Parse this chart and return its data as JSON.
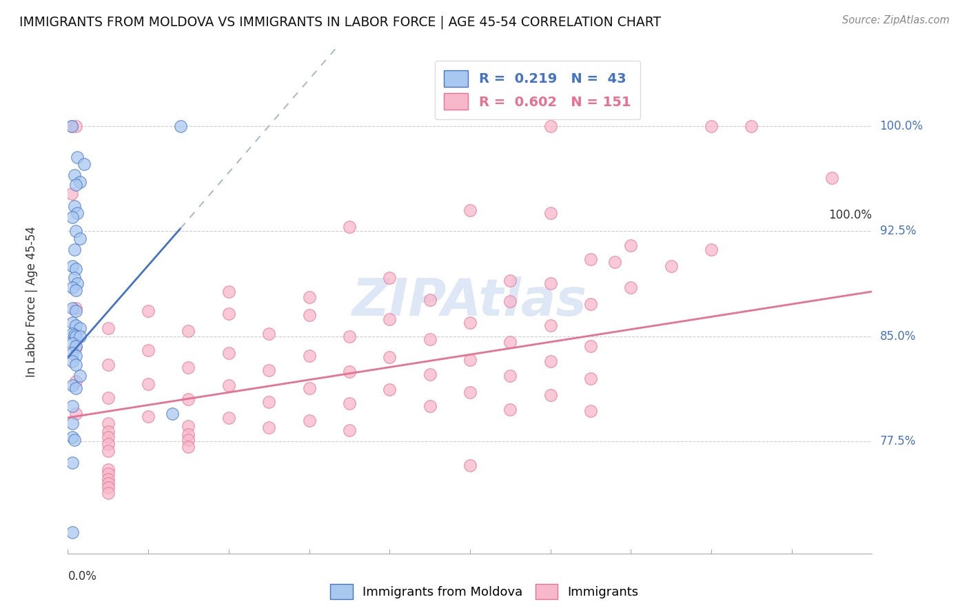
{
  "title": "IMMIGRANTS FROM MOLDOVA VS IMMIGRANTS IN LABOR FORCE | AGE 45-54 CORRELATION CHART",
  "source": "Source: ZipAtlas.com",
  "ylabel": "In Labor Force | Age 45-54",
  "yticks": [
    0.775,
    0.85,
    0.925,
    1.0
  ],
  "ytick_labels": [
    "77.5%",
    "85.0%",
    "92.5%",
    "100.0%"
  ],
  "xtick_labels": [
    "0.0%",
    "100.0%"
  ],
  "xmin": 0.0,
  "xmax": 1.0,
  "ymin": 0.695,
  "ymax": 1.055,
  "blue_color": "#a8c8f0",
  "blue_line_color": "#4472c4",
  "pink_color": "#f8b8cc",
  "pink_line_color": "#e87090",
  "blue_scatter": [
    [
      0.005,
      1.0
    ],
    [
      0.14,
      1.0
    ],
    [
      0.012,
      0.978
    ],
    [
      0.02,
      0.973
    ],
    [
      0.008,
      0.965
    ],
    [
      0.015,
      0.96
    ],
    [
      0.01,
      0.958
    ],
    [
      0.008,
      0.943
    ],
    [
      0.012,
      0.938
    ],
    [
      0.006,
      0.935
    ],
    [
      0.01,
      0.925
    ],
    [
      0.015,
      0.92
    ],
    [
      0.008,
      0.912
    ],
    [
      0.006,
      0.9
    ],
    [
      0.01,
      0.898
    ],
    [
      0.008,
      0.892
    ],
    [
      0.012,
      0.888
    ],
    [
      0.006,
      0.885
    ],
    [
      0.01,
      0.883
    ],
    [
      0.006,
      0.87
    ],
    [
      0.01,
      0.868
    ],
    [
      0.006,
      0.86
    ],
    [
      0.01,
      0.858
    ],
    [
      0.015,
      0.856
    ],
    [
      0.006,
      0.852
    ],
    [
      0.008,
      0.851
    ],
    [
      0.01,
      0.85
    ],
    [
      0.015,
      0.85
    ],
    [
      0.006,
      0.845
    ],
    [
      0.01,
      0.843
    ],
    [
      0.006,
      0.838
    ],
    [
      0.01,
      0.836
    ],
    [
      0.006,
      0.832
    ],
    [
      0.01,
      0.83
    ],
    [
      0.015,
      0.822
    ],
    [
      0.006,
      0.815
    ],
    [
      0.01,
      0.813
    ],
    [
      0.006,
      0.8
    ],
    [
      0.13,
      0.795
    ],
    [
      0.006,
      0.788
    ],
    [
      0.006,
      0.778
    ],
    [
      0.008,
      0.776
    ],
    [
      0.006,
      0.76
    ],
    [
      0.006,
      0.71
    ]
  ],
  "pink_scatter": [
    [
      0.005,
      1.0
    ],
    [
      0.01,
      1.0
    ],
    [
      0.6,
      1.0
    ],
    [
      0.8,
      1.0
    ],
    [
      0.85,
      1.0
    ],
    [
      0.95,
      0.963
    ],
    [
      0.005,
      0.952
    ],
    [
      0.5,
      0.94
    ],
    [
      0.6,
      0.938
    ],
    [
      0.35,
      0.928
    ],
    [
      0.7,
      0.915
    ],
    [
      0.8,
      0.912
    ],
    [
      0.65,
      0.905
    ],
    [
      0.68,
      0.903
    ],
    [
      0.75,
      0.9
    ],
    [
      0.4,
      0.892
    ],
    [
      0.55,
      0.89
    ],
    [
      0.6,
      0.888
    ],
    [
      0.7,
      0.885
    ],
    [
      0.2,
      0.882
    ],
    [
      0.3,
      0.878
    ],
    [
      0.45,
      0.876
    ],
    [
      0.55,
      0.875
    ],
    [
      0.65,
      0.873
    ],
    [
      0.01,
      0.87
    ],
    [
      0.1,
      0.868
    ],
    [
      0.2,
      0.866
    ],
    [
      0.3,
      0.865
    ],
    [
      0.4,
      0.862
    ],
    [
      0.5,
      0.86
    ],
    [
      0.6,
      0.858
    ],
    [
      0.05,
      0.856
    ],
    [
      0.15,
      0.854
    ],
    [
      0.25,
      0.852
    ],
    [
      0.35,
      0.85
    ],
    [
      0.45,
      0.848
    ],
    [
      0.55,
      0.846
    ],
    [
      0.65,
      0.843
    ],
    [
      0.01,
      0.842
    ],
    [
      0.1,
      0.84
    ],
    [
      0.2,
      0.838
    ],
    [
      0.3,
      0.836
    ],
    [
      0.4,
      0.835
    ],
    [
      0.5,
      0.833
    ],
    [
      0.6,
      0.832
    ],
    [
      0.05,
      0.83
    ],
    [
      0.15,
      0.828
    ],
    [
      0.25,
      0.826
    ],
    [
      0.35,
      0.825
    ],
    [
      0.45,
      0.823
    ],
    [
      0.55,
      0.822
    ],
    [
      0.65,
      0.82
    ],
    [
      0.01,
      0.818
    ],
    [
      0.1,
      0.816
    ],
    [
      0.2,
      0.815
    ],
    [
      0.3,
      0.813
    ],
    [
      0.4,
      0.812
    ],
    [
      0.5,
      0.81
    ],
    [
      0.6,
      0.808
    ],
    [
      0.05,
      0.806
    ],
    [
      0.15,
      0.805
    ],
    [
      0.25,
      0.803
    ],
    [
      0.35,
      0.802
    ],
    [
      0.45,
      0.8
    ],
    [
      0.55,
      0.798
    ],
    [
      0.65,
      0.797
    ],
    [
      0.01,
      0.795
    ],
    [
      0.1,
      0.793
    ],
    [
      0.2,
      0.792
    ],
    [
      0.3,
      0.79
    ],
    [
      0.05,
      0.788
    ],
    [
      0.15,
      0.786
    ],
    [
      0.25,
      0.785
    ],
    [
      0.35,
      0.783
    ],
    [
      0.05,
      0.782
    ],
    [
      0.15,
      0.78
    ],
    [
      0.05,
      0.778
    ],
    [
      0.15,
      0.776
    ],
    [
      0.05,
      0.773
    ],
    [
      0.15,
      0.771
    ],
    [
      0.05,
      0.768
    ],
    [
      0.5,
      0.758
    ],
    [
      0.05,
      0.755
    ],
    [
      0.05,
      0.752
    ],
    [
      0.05,
      0.748
    ],
    [
      0.05,
      0.745
    ],
    [
      0.05,
      0.742
    ],
    [
      0.05,
      0.738
    ]
  ],
  "blue_regline_solid": [
    [
      0.0,
      0.835
    ],
    [
      0.14,
      0.927
    ]
  ],
  "blue_regline_dashed": [
    [
      0.14,
      0.927
    ],
    [
      0.4,
      1.1
    ]
  ],
  "pink_regline": [
    [
      0.0,
      0.792
    ],
    [
      1.0,
      0.882
    ]
  ],
  "watermark": "ZIPAtlas",
  "watermark_color": "#c8d8f0",
  "background_color": "#ffffff"
}
